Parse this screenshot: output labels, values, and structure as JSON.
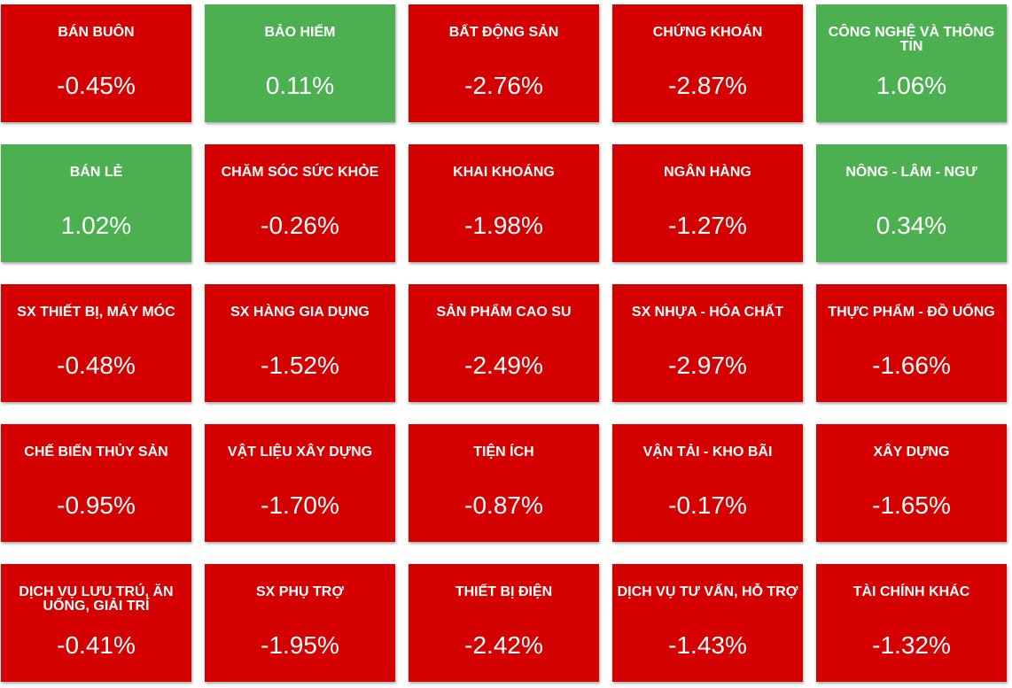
{
  "colors": {
    "down": "#d50000",
    "up": "#4caf50",
    "text": "#ffffff"
  },
  "sectors": [
    {
      "name": "BÁN BUÔN",
      "change": "-0.45%",
      "trend": "down"
    },
    {
      "name": "BẢO HIỂM",
      "change": "0.11%",
      "trend": "up"
    },
    {
      "name": "BẤT ĐỘNG SẢN",
      "change": "-2.76%",
      "trend": "down"
    },
    {
      "name": "CHỨNG KHOÁN",
      "change": "-2.87%",
      "trend": "down"
    },
    {
      "name": "CÔNG NGHỆ VÀ THÔNG TIN",
      "change": "1.06%",
      "trend": "up"
    },
    {
      "name": "BÁN LẺ",
      "change": "1.02%",
      "trend": "up"
    },
    {
      "name": "CHĂM SÓC SỨC KHỎE",
      "change": "-0.26%",
      "trend": "down"
    },
    {
      "name": "KHAI KHOÁNG",
      "change": "-1.98%",
      "trend": "down"
    },
    {
      "name": "NGÂN HÀNG",
      "change": "-1.27%",
      "trend": "down"
    },
    {
      "name": "NÔNG - LÂM - NGƯ",
      "change": "0.34%",
      "trend": "up"
    },
    {
      "name": "SX THIẾT BỊ, MÁY MÓC",
      "change": "-0.48%",
      "trend": "down"
    },
    {
      "name": "SX HÀNG GIA DỤNG",
      "change": "-1.52%",
      "trend": "down"
    },
    {
      "name": "SẢN PHẨM CAO SU",
      "change": "-2.49%",
      "trend": "down"
    },
    {
      "name": "SX NHỰA - HÓA CHẤT",
      "change": "-2.97%",
      "trend": "down"
    },
    {
      "name": "THỰC PHẨM - ĐỒ UỐNG",
      "change": "-1.66%",
      "trend": "down"
    },
    {
      "name": "CHẾ BIẾN THỦY SẢN",
      "change": "-0.95%",
      "trend": "down"
    },
    {
      "name": "VẬT LIỆU XÂY DỰNG",
      "change": "-1.70%",
      "trend": "down"
    },
    {
      "name": "TIỆN ÍCH",
      "change": "-0.87%",
      "trend": "down"
    },
    {
      "name": "VẬN TẢI - KHO BÃI",
      "change": "-0.17%",
      "trend": "down"
    },
    {
      "name": "XÂY DỰNG",
      "change": "-1.65%",
      "trend": "down"
    },
    {
      "name": "DỊCH VỤ LƯU TRÚ, ĂN UỐNG, GIẢI TRÍ",
      "change": "-0.41%",
      "trend": "down"
    },
    {
      "name": "SX PHỤ TRỢ",
      "change": "-1.95%",
      "trend": "down"
    },
    {
      "name": "THIẾT BỊ ĐIỆN",
      "change": "-2.42%",
      "trend": "down"
    },
    {
      "name": "DỊCH VỤ TƯ VẤN, HỖ TRỢ",
      "change": "-1.43%",
      "trend": "down"
    },
    {
      "name": "TÀI CHÍNH KHÁC",
      "change": "-1.32%",
      "trend": "down"
    }
  ]
}
